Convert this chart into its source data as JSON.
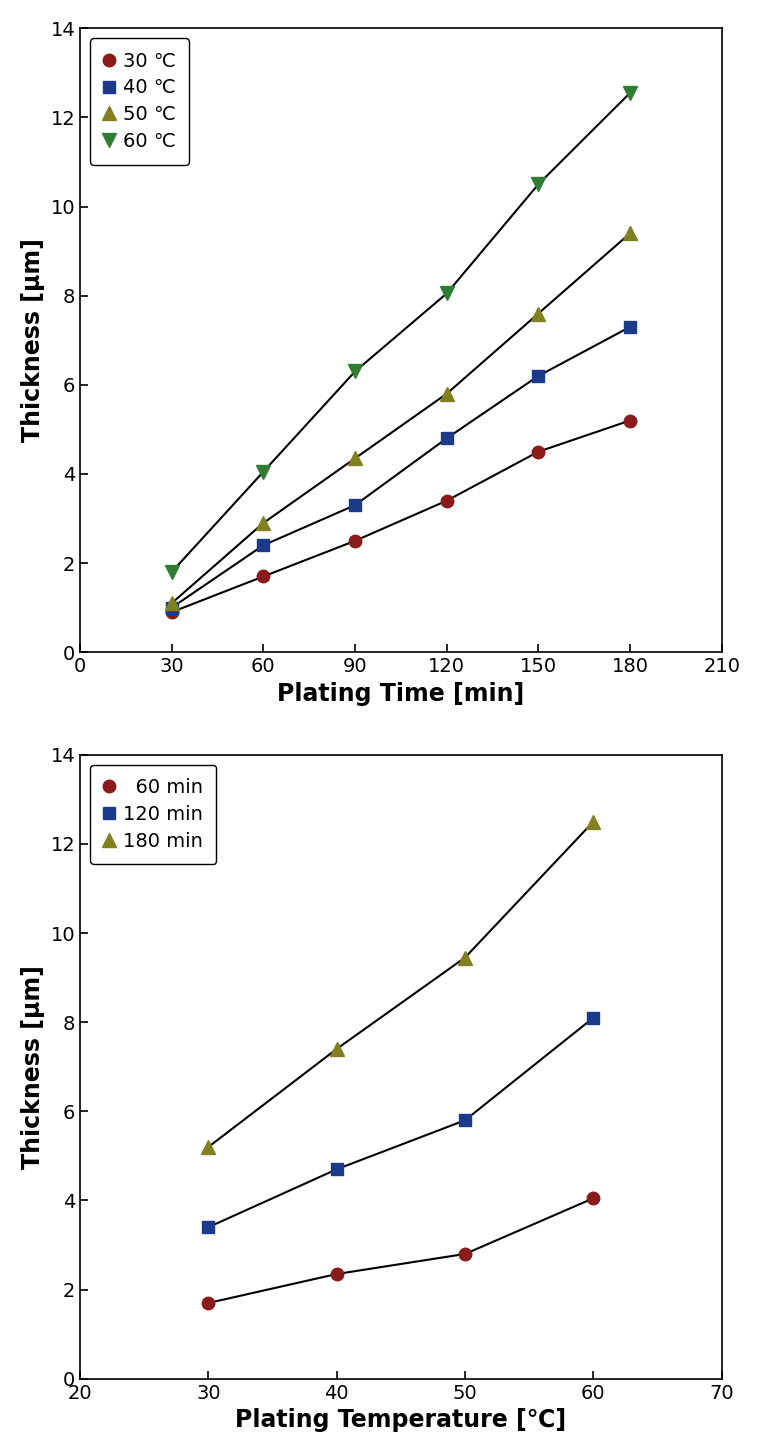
{
  "plot1": {
    "xlabel": "Plating Time [min]",
    "ylabel": "Thickness [μm]",
    "xlim": [
      0,
      210
    ],
    "ylim": [
      0,
      14
    ],
    "xticks": [
      0,
      30,
      60,
      90,
      120,
      150,
      180,
      210
    ],
    "yticks": [
      0,
      2,
      4,
      6,
      8,
      10,
      12,
      14
    ],
    "series": [
      {
        "label": "30 ℃",
        "x": [
          30,
          60,
          90,
          120,
          150,
          180
        ],
        "y": [
          0.9,
          1.7,
          2.5,
          3.4,
          4.5,
          5.2
        ],
        "color": "#8B1A1A",
        "marker": "o",
        "markersize": 9
      },
      {
        "label": "40 ℃",
        "x": [
          30,
          60,
          90,
          120,
          150,
          180
        ],
        "y": [
          1.0,
          2.4,
          3.3,
          4.8,
          6.2,
          7.3
        ],
        "color": "#1C3A8A",
        "marker": "s",
        "markersize": 9
      },
      {
        "label": "50 ℃",
        "x": [
          30,
          60,
          90,
          120,
          150,
          180
        ],
        "y": [
          1.1,
          2.9,
          4.35,
          5.8,
          7.6,
          9.4
        ],
        "color": "#808020",
        "marker": "^",
        "markersize": 10
      },
      {
        "label": "60 ℃",
        "x": [
          30,
          60,
          90,
          120,
          150,
          180
        ],
        "y": [
          1.8,
          4.05,
          6.3,
          8.05,
          10.5,
          12.55
        ],
        "color": "#2E7D32",
        "marker": "v",
        "markersize": 10
      }
    ]
  },
  "plot2": {
    "xlabel": "Plating Temperature [℃]",
    "ylabel": "Thickness [μm]",
    "xlim": [
      20,
      70
    ],
    "ylim": [
      0,
      14
    ],
    "xticks": [
      20,
      30,
      40,
      50,
      60,
      70
    ],
    "yticks": [
      0,
      2,
      4,
      6,
      8,
      10,
      12,
      14
    ],
    "series": [
      {
        "label": "  60 min",
        "x": [
          30,
          40,
          50,
          60
        ],
        "y": [
          1.7,
          2.35,
          2.8,
          4.05
        ],
        "color": "#8B1A1A",
        "marker": "o",
        "markersize": 9
      },
      {
        "label": "120 min",
        "x": [
          30,
          40,
          50,
          60
        ],
        "y": [
          3.4,
          4.7,
          5.8,
          8.1
        ],
        "color": "#1C3A8A",
        "marker": "s",
        "markersize": 9
      },
      {
        "label": "180 min",
        "x": [
          30,
          40,
          50,
          60
        ],
        "y": [
          5.2,
          7.4,
          9.45,
          12.5
        ],
        "color": "#808020",
        "marker": "^",
        "markersize": 10
      }
    ]
  },
  "figure_bg": "#FFFFFF",
  "axes_bg": "#FFFFFF",
  "linewidth": 1.5,
  "legend_fontsize": 14,
  "axis_label_fontsize": 17,
  "tick_fontsize": 14
}
